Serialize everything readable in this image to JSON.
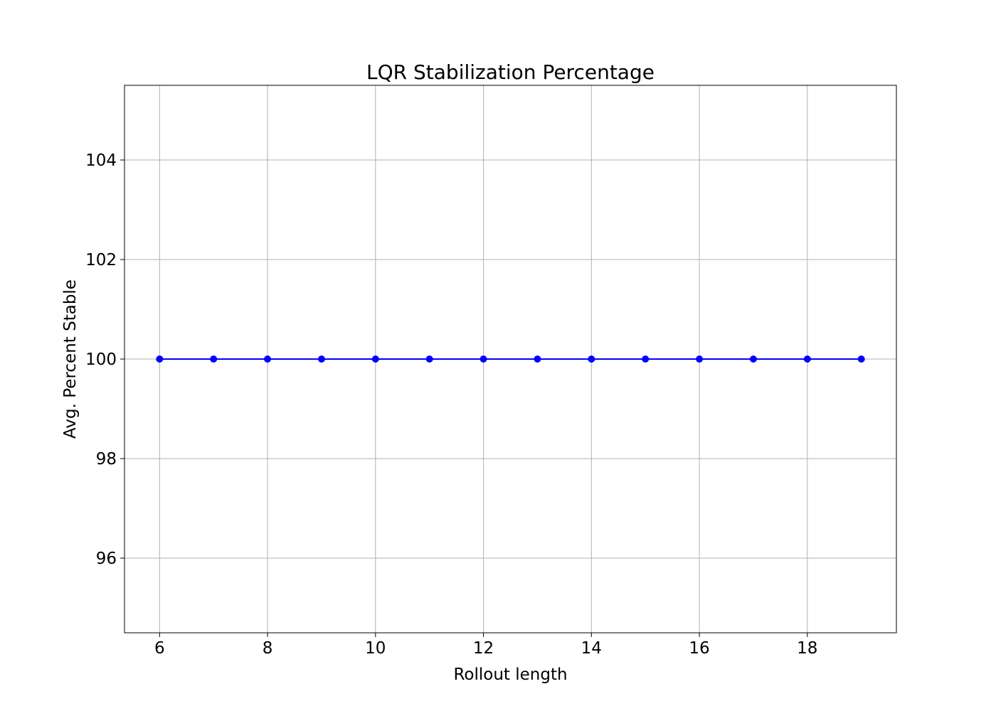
{
  "chart_data": {
    "type": "line",
    "title": "LQR Stabilization Percentage",
    "xlabel": "Rollout length",
    "ylabel": "Avg. Percent Stable",
    "x": [
      6,
      7,
      8,
      9,
      10,
      11,
      12,
      13,
      14,
      15,
      16,
      17,
      18,
      19
    ],
    "series": [
      {
        "values": [
          100,
          100,
          100,
          100,
          100,
          100,
          100,
          100,
          100,
          100,
          100,
          100,
          100,
          100
        ],
        "color": "#0000ff",
        "marker": "circle"
      }
    ],
    "xlim": [
      5.35,
      19.65
    ],
    "ylim": [
      94.5,
      105.5
    ],
    "xticks": [
      6,
      8,
      10,
      12,
      14,
      16,
      18
    ],
    "yticks": [
      96,
      98,
      100,
      102,
      104
    ],
    "grid": true,
    "legend": "none"
  }
}
